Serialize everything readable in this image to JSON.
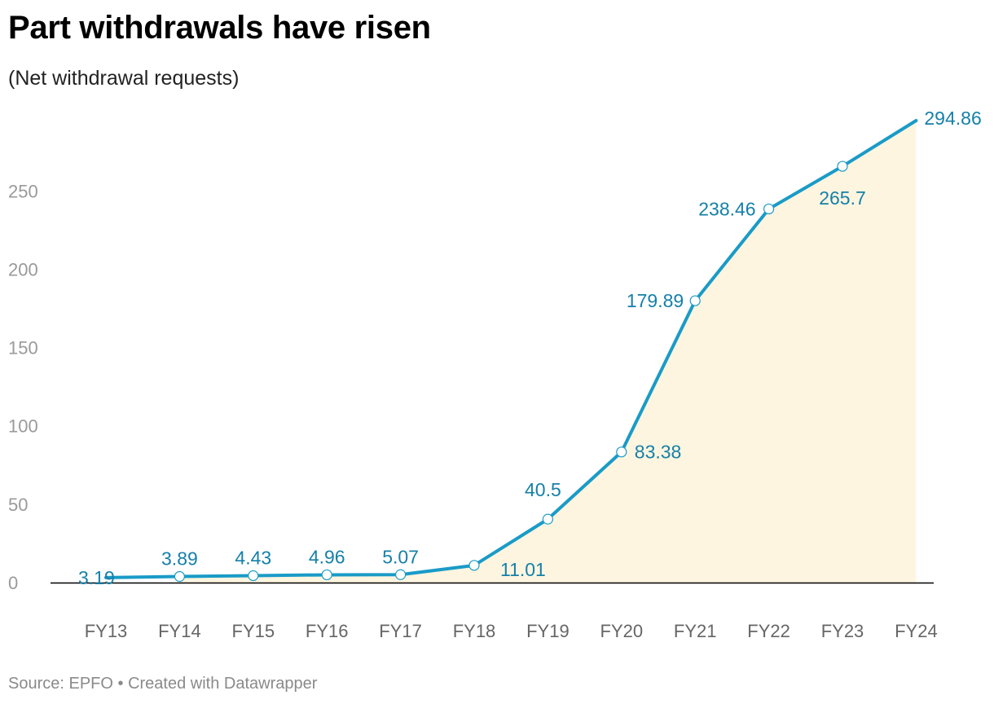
{
  "title": "Part withdrawals have risen",
  "subtitle": "(Net withdrawal requests)",
  "footer": {
    "source_label": "Source: EPFO",
    "separator": "•",
    "credit": "Created with Datawrapper"
  },
  "colors": {
    "line": "#1a9bc7",
    "label": "#1680a8",
    "area": "#fdf5e0",
    "axis_tick": "#9a9a9a",
    "baseline": "#000000",
    "marker_fill": "#ffffff"
  },
  "chart_data": {
    "type": "area",
    "x": [
      "FY13",
      "FY14",
      "FY15",
      "FY16",
      "FY17",
      "FY18",
      "FY19",
      "FY20",
      "FY21",
      "FY22",
      "FY23",
      "FY24"
    ],
    "series": [
      {
        "values": [
          3.19,
          3.89,
          4.43,
          4.96,
          5.07,
          11.01,
          40.5,
          83.38,
          179.89,
          238.46,
          265.7,
          294.86
        ],
        "labels": [
          "3.19",
          "3.89",
          "4.43",
          "4.96",
          "5.07",
          "11.01",
          "40.5",
          "83.38",
          "179.89",
          "238.46",
          "265.7",
          "294.86"
        ]
      }
    ],
    "ylim": [
      0,
      294.86
    ],
    "yticks": [
      "0",
      "50",
      "100",
      "150",
      "200",
      "250"
    ],
    "grid": false,
    "legend": "none"
  }
}
